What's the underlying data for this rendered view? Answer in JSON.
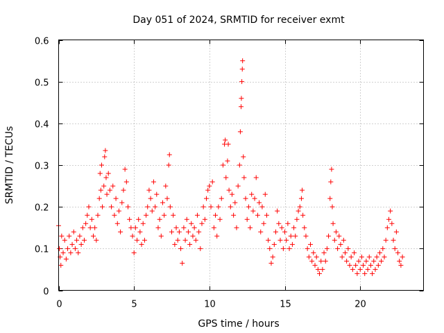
{
  "chart_data": {
    "type": "scatter",
    "title": "Day 051 of 2024, SRMTID for receiver exmt",
    "xlabel": "GPS time / hours",
    "ylabel": "SRMTID / TECUs",
    "xlim": [
      0,
      24.2
    ],
    "ylim": [
      0,
      0.6
    ],
    "xticks": [
      0,
      5,
      10,
      15,
      20
    ],
    "xtick_labels": [
      "0",
      "5",
      "10",
      "15",
      "20"
    ],
    "yticks": [
      0,
      0.1,
      0.2,
      0.3,
      0.4,
      0.5,
      0.6
    ],
    "ytick_labels": [
      "0",
      "0.1",
      "0.2",
      "0.3",
      "0.4",
      "0.5",
      "0.6"
    ],
    "grid": true,
    "marker": "plus",
    "color": "#ff0000",
    "series": [
      {
        "name": "SRMTID",
        "points": [
          [
            0.0,
            0.155
          ],
          [
            0.05,
            0.1
          ],
          [
            0.1,
            0.08
          ],
          [
            0.15,
            0.06
          ],
          [
            0.2,
            0.13
          ],
          [
            0.3,
            0.09
          ],
          [
            0.4,
            0.12
          ],
          [
            0.5,
            0.075
          ],
          [
            0.6,
            0.1
          ],
          [
            0.7,
            0.13
          ],
          [
            0.8,
            0.09
          ],
          [
            0.9,
            0.11
          ],
          [
            1.0,
            0.14
          ],
          [
            1.1,
            0.1
          ],
          [
            1.2,
            0.12
          ],
          [
            1.3,
            0.09
          ],
          [
            1.4,
            0.13
          ],
          [
            1.5,
            0.11
          ],
          [
            1.6,
            0.15
          ],
          [
            1.7,
            0.12
          ],
          [
            1.8,
            0.16
          ],
          [
            1.9,
            0.18
          ],
          [
            2.0,
            0.2
          ],
          [
            2.1,
            0.15
          ],
          [
            2.2,
            0.17
          ],
          [
            2.3,
            0.13
          ],
          [
            2.4,
            0.15
          ],
          [
            2.5,
            0.12
          ],
          [
            2.6,
            0.18
          ],
          [
            2.7,
            0.22
          ],
          [
            2.75,
            0.28
          ],
          [
            2.8,
            0.24
          ],
          [
            2.85,
            0.3
          ],
          [
            2.9,
            0.2
          ],
          [
            3.0,
            0.25
          ],
          [
            3.05,
            0.32
          ],
          [
            3.1,
            0.335
          ],
          [
            3.15,
            0.27
          ],
          [
            3.2,
            0.23
          ],
          [
            3.3,
            0.28
          ],
          [
            3.4,
            0.24
          ],
          [
            3.5,
            0.2
          ],
          [
            3.6,
            0.25
          ],
          [
            3.7,
            0.18
          ],
          [
            3.8,
            0.22
          ],
          [
            3.9,
            0.16
          ],
          [
            4.0,
            0.19
          ],
          [
            4.1,
            0.14
          ],
          [
            4.2,
            0.21
          ],
          [
            4.3,
            0.24
          ],
          [
            4.4,
            0.29
          ],
          [
            4.5,
            0.26
          ],
          [
            4.6,
            0.2
          ],
          [
            4.7,
            0.17
          ],
          [
            4.8,
            0.15
          ],
          [
            4.9,
            0.13
          ],
          [
            5.0,
            0.09
          ],
          [
            5.1,
            0.15
          ],
          [
            5.2,
            0.12
          ],
          [
            5.3,
            0.17
          ],
          [
            5.4,
            0.14
          ],
          [
            5.5,
            0.11
          ],
          [
            5.6,
            0.16
          ],
          [
            5.7,
            0.12
          ],
          [
            5.8,
            0.18
          ],
          [
            5.9,
            0.2
          ],
          [
            6.0,
            0.24
          ],
          [
            6.1,
            0.22
          ],
          [
            6.2,
            0.19
          ],
          [
            6.3,
            0.26
          ],
          [
            6.4,
            0.2
          ],
          [
            6.5,
            0.23
          ],
          [
            6.6,
            0.15
          ],
          [
            6.7,
            0.17
          ],
          [
            6.8,
            0.13
          ],
          [
            6.9,
            0.21
          ],
          [
            7.0,
            0.18
          ],
          [
            7.1,
            0.25
          ],
          [
            7.2,
            0.22
          ],
          [
            7.3,
            0.3
          ],
          [
            7.35,
            0.325
          ],
          [
            7.4,
            0.2
          ],
          [
            7.5,
            0.14
          ],
          [
            7.6,
            0.18
          ],
          [
            7.7,
            0.11
          ],
          [
            7.8,
            0.15
          ],
          [
            7.9,
            0.12
          ],
          [
            8.0,
            0.14
          ],
          [
            8.1,
            0.1
          ],
          [
            8.2,
            0.065
          ],
          [
            8.3,
            0.15
          ],
          [
            8.4,
            0.12
          ],
          [
            8.5,
            0.17
          ],
          [
            8.6,
            0.14
          ],
          [
            8.7,
            0.11
          ],
          [
            8.8,
            0.16
          ],
          [
            8.9,
            0.13
          ],
          [
            9.0,
            0.15
          ],
          [
            9.1,
            0.12
          ],
          [
            9.2,
            0.18
          ],
          [
            9.3,
            0.14
          ],
          [
            9.4,
            0.1
          ],
          [
            9.5,
            0.16
          ],
          [
            9.6,
            0.2
          ],
          [
            9.7,
            0.17
          ],
          [
            9.8,
            0.22
          ],
          [
            9.9,
            0.24
          ],
          [
            10.0,
            0.25
          ],
          [
            10.1,
            0.2
          ],
          [
            10.2,
            0.26
          ],
          [
            10.3,
            0.15
          ],
          [
            10.4,
            0.18
          ],
          [
            10.5,
            0.13
          ],
          [
            10.6,
            0.2
          ],
          [
            10.7,
            0.17
          ],
          [
            10.8,
            0.22
          ],
          [
            10.9,
            0.3
          ],
          [
            11.0,
            0.35
          ],
          [
            11.05,
            0.36
          ],
          [
            11.1,
            0.27
          ],
          [
            11.2,
            0.31
          ],
          [
            11.25,
            0.35
          ],
          [
            11.3,
            0.24
          ],
          [
            11.4,
            0.2
          ],
          [
            11.5,
            0.23
          ],
          [
            11.6,
            0.18
          ],
          [
            11.7,
            0.21
          ],
          [
            11.8,
            0.15
          ],
          [
            11.9,
            0.25
          ],
          [
            12.0,
            0.3
          ],
          [
            12.05,
            0.38
          ],
          [
            12.1,
            0.44
          ],
          [
            12.12,
            0.46
          ],
          [
            12.15,
            0.5
          ],
          [
            12.18,
            0.53
          ],
          [
            12.2,
            0.55
          ],
          [
            12.25,
            0.32
          ],
          [
            12.3,
            0.27
          ],
          [
            12.4,
            0.22
          ],
          [
            12.5,
            0.17
          ],
          [
            12.6,
            0.2
          ],
          [
            12.7,
            0.15
          ],
          [
            12.8,
            0.23
          ],
          [
            12.9,
            0.19
          ],
          [
            13.0,
            0.22
          ],
          [
            13.1,
            0.27
          ],
          [
            13.2,
            0.18
          ],
          [
            13.3,
            0.21
          ],
          [
            13.4,
            0.14
          ],
          [
            13.5,
            0.2
          ],
          [
            13.6,
            0.16
          ],
          [
            13.7,
            0.23
          ],
          [
            13.8,
            0.18
          ],
          [
            13.9,
            0.12
          ],
          [
            14.0,
            0.1
          ],
          [
            14.1,
            0.065
          ],
          [
            14.2,
            0.08
          ],
          [
            14.3,
            0.11
          ],
          [
            14.4,
            0.14
          ],
          [
            14.5,
            0.19
          ],
          [
            14.6,
            0.16
          ],
          [
            14.7,
            0.12
          ],
          [
            14.8,
            0.15
          ],
          [
            14.9,
            0.1
          ],
          [
            15.0,
            0.14
          ],
          [
            15.1,
            0.12
          ],
          [
            15.2,
            0.16
          ],
          [
            15.3,
            0.1
          ],
          [
            15.4,
            0.13
          ],
          [
            15.5,
            0.11
          ],
          [
            15.6,
            0.15
          ],
          [
            15.7,
            0.13
          ],
          [
            15.8,
            0.17
          ],
          [
            15.9,
            0.19
          ],
          [
            16.0,
            0.2
          ],
          [
            16.1,
            0.22
          ],
          [
            16.15,
            0.24
          ],
          [
            16.2,
            0.18
          ],
          [
            16.3,
            0.15
          ],
          [
            16.4,
            0.13
          ],
          [
            16.5,
            0.1
          ],
          [
            16.6,
            0.08
          ],
          [
            16.7,
            0.11
          ],
          [
            16.8,
            0.07
          ],
          [
            16.9,
            0.09
          ],
          [
            17.0,
            0.06
          ],
          [
            17.1,
            0.08
          ],
          [
            17.2,
            0.05
          ],
          [
            17.3,
            0.04
          ],
          [
            17.4,
            0.07
          ],
          [
            17.5,
            0.05
          ],
          [
            17.6,
            0.09
          ],
          [
            17.7,
            0.07
          ],
          [
            17.8,
            0.1
          ],
          [
            17.9,
            0.13
          ],
          [
            18.0,
            0.22
          ],
          [
            18.05,
            0.26
          ],
          [
            18.1,
            0.29
          ],
          [
            18.15,
            0.2
          ],
          [
            18.2,
            0.16
          ],
          [
            18.3,
            0.12
          ],
          [
            18.4,
            0.14
          ],
          [
            18.5,
            0.1
          ],
          [
            18.6,
            0.13
          ],
          [
            18.7,
            0.11
          ],
          [
            18.8,
            0.08
          ],
          [
            18.9,
            0.12
          ],
          [
            19.0,
            0.09
          ],
          [
            19.1,
            0.07
          ],
          [
            19.2,
            0.1
          ],
          [
            19.3,
            0.06
          ],
          [
            19.4,
            0.08
          ],
          [
            19.5,
            0.05
          ],
          [
            19.6,
            0.09
          ],
          [
            19.7,
            0.06
          ],
          [
            19.8,
            0.04
          ],
          [
            19.9,
            0.07
          ],
          [
            20.0,
            0.05
          ],
          [
            20.1,
            0.08
          ],
          [
            20.2,
            0.06
          ],
          [
            20.3,
            0.04
          ],
          [
            20.4,
            0.07
          ],
          [
            20.5,
            0.05
          ],
          [
            20.6,
            0.08
          ],
          [
            20.7,
            0.06
          ],
          [
            20.8,
            0.04
          ],
          [
            20.9,
            0.07
          ],
          [
            21.0,
            0.05
          ],
          [
            21.1,
            0.08
          ],
          [
            21.2,
            0.06
          ],
          [
            21.3,
            0.09
          ],
          [
            21.4,
            0.07
          ],
          [
            21.5,
            0.1
          ],
          [
            21.6,
            0.08
          ],
          [
            21.7,
            0.12
          ],
          [
            21.8,
            0.15
          ],
          [
            21.9,
            0.17
          ],
          [
            22.0,
            0.19
          ],
          [
            22.1,
            0.16
          ],
          [
            22.2,
            0.12
          ],
          [
            22.3,
            0.1
          ],
          [
            22.4,
            0.14
          ],
          [
            22.5,
            0.09
          ],
          [
            22.6,
            0.07
          ],
          [
            22.7,
            0.06
          ],
          [
            22.8,
            0.08
          ]
        ]
      }
    ]
  }
}
